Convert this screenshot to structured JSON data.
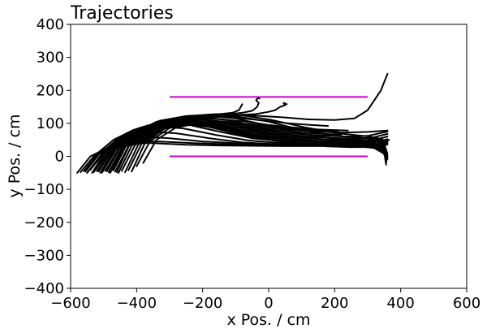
{
  "chart_data": {
    "type": "line",
    "title": "Trajectories",
    "xlabel": "x Pos. / cm",
    "ylabel": "y Pos. / cm",
    "xlim": [
      -600,
      600
    ],
    "ylim": [
      -400,
      400
    ],
    "xticks": [
      -600,
      -400,
      -200,
      0,
      200,
      400,
      600
    ],
    "yticks": [
      -400,
      -300,
      -200,
      -100,
      0,
      100,
      200,
      300,
      400
    ],
    "xtick_labels": [
      "−600",
      "−400",
      "−200",
      "0",
      "200",
      "400",
      "600"
    ],
    "ytick_labels": [
      "−400",
      "−300",
      "−200",
      "−100",
      "0",
      "100",
      "200",
      "300",
      "400"
    ],
    "grid": false,
    "reference_lines": {
      "color": "#cc00cc",
      "lines": [
        {
          "x": [
            -300,
            300
          ],
          "y": [
            180,
            180
          ]
        },
        {
          "x": [
            -300,
            300
          ],
          "y": [
            0,
            0
          ]
        }
      ]
    },
    "trajectory_color": "#000000",
    "series": [
      {
        "x": [
          -580,
          -540,
          -480,
          -420,
          -350,
          -250,
          -150,
          -50,
          50,
          150,
          250,
          320,
          355
        ],
        "y": [
          -50,
          0,
          30,
          40,
          40,
          35,
          33,
          32,
          31,
          31,
          33,
          25,
          5
        ]
      },
      {
        "x": [
          -560,
          -520,
          -460,
          -400,
          -330,
          -230,
          -130,
          -30,
          70,
          170,
          260,
          330,
          360
        ],
        "y": [
          -45,
          5,
          35,
          45,
          45,
          40,
          37,
          35,
          33,
          32,
          35,
          28,
          2
        ]
      },
      {
        "x": [
          -550,
          -500,
          -440,
          -380,
          -300,
          -200,
          -100,
          0,
          100,
          200,
          280,
          340,
          360
        ],
        "y": [
          -50,
          10,
          45,
          60,
          55,
          45,
          40,
          36,
          34,
          33,
          36,
          20,
          -5
        ]
      },
      {
        "x": [
          -540,
          -490,
          -420,
          -360,
          -280,
          -180,
          -80,
          20,
          120,
          220,
          300,
          345,
          358
        ],
        "y": [
          -40,
          20,
          60,
          75,
          70,
          55,
          42,
          37,
          35,
          34,
          37,
          15,
          -10
        ]
      },
      {
        "x": [
          -530,
          -480,
          -410,
          -340,
          -260,
          -160,
          -60,
          40,
          140,
          240,
          310,
          350,
          357
        ],
        "y": [
          -48,
          25,
          70,
          90,
          85,
          65,
          48,
          40,
          37,
          36,
          40,
          10,
          -15
        ]
      },
      {
        "x": [
          -520,
          -470,
          -400,
          -320,
          -240,
          -150,
          -50,
          50,
          150,
          250,
          315,
          350,
          355
        ],
        "y": [
          -45,
          30,
          80,
          100,
          95,
          75,
          55,
          45,
          38,
          37,
          40,
          12,
          -20
        ]
      },
      {
        "x": [
          -510,
          -460,
          -380,
          -300,
          -220,
          -140,
          -40,
          60,
          160,
          260,
          320,
          352,
          356
        ],
        "y": [
          -50,
          35,
          85,
          105,
          105,
          90,
          65,
          50,
          42,
          40,
          42,
          14,
          -25
        ]
      },
      {
        "x": [
          -500,
          -450,
          -370,
          -290,
          -200,
          -120,
          -30,
          70,
          170,
          270,
          330,
          355
        ],
        "y": [
          -40,
          40,
          90,
          110,
          112,
          100,
          75,
          55,
          45,
          42,
          44,
          0
        ]
      },
      {
        "x": [
          -490,
          -440,
          -360,
          -280,
          -190,
          -110,
          -20,
          80,
          180,
          280,
          335,
          358
        ],
        "y": [
          -45,
          45,
          95,
          115,
          118,
          108,
          85,
          62,
          50,
          46,
          45,
          -5
        ]
      },
      {
        "x": [
          -480,
          -430,
          -350,
          -270,
          -180,
          -100,
          -10,
          90,
          190,
          290,
          340,
          360
        ],
        "y": [
          -50,
          50,
          100,
          118,
          122,
          115,
          95,
          70,
          55,
          50,
          48,
          -8
        ]
      },
      {
        "x": [
          -470,
          -420,
          -340,
          -260,
          -170,
          -90,
          0,
          100,
          200,
          300,
          342,
          360
        ],
        "y": [
          -42,
          55,
          105,
          120,
          125,
          120,
          105,
          80,
          62,
          55,
          50,
          0
        ]
      },
      {
        "x": [
          -460,
          -410,
          -330,
          -250,
          -160,
          -80,
          10,
          110,
          210,
          305,
          345,
          360
        ],
        "y": [
          -48,
          60,
          108,
          122,
          128,
          124,
          110,
          88,
          70,
          60,
          52,
          8
        ]
      },
      {
        "x": [
          -570,
          -530,
          -470,
          -410,
          -340,
          -260,
          -200,
          -150,
          -110,
          -90,
          -80
        ],
        "y": [
          -48,
          0,
          50,
          80,
          100,
          110,
          120,
          128,
          132,
          140,
          158
        ]
      },
      {
        "x": [
          -555,
          -515,
          -455,
          -395,
          -325,
          -250,
          -180,
          -120,
          -80,
          -50,
          -35,
          -30,
          -38,
          -32,
          -28
        ],
        "y": [
          -46,
          5,
          55,
          85,
          105,
          115,
          122,
          128,
          132,
          138,
          150,
          162,
          170,
          178,
          175
        ]
      },
      {
        "x": [
          -545,
          -505,
          -445,
          -385,
          -315,
          -240,
          -170,
          -100,
          -40,
          0,
          20,
          35,
          50,
          45,
          55
        ],
        "y": [
          -44,
          8,
          58,
          88,
          108,
          118,
          122,
          125,
          128,
          135,
          140,
          150,
          155,
          162,
          158
        ]
      },
      {
        "x": [
          -535,
          -495,
          -435,
          -375,
          -305,
          -230,
          -160,
          -90,
          -20,
          50,
          120,
          200,
          260,
          300,
          340,
          360
        ],
        "y": [
          -50,
          12,
          60,
          90,
          110,
          120,
          125,
          125,
          122,
          118,
          112,
          110,
          115,
          140,
          200,
          250
        ]
      },
      {
        "x": [
          -525,
          -485,
          -425,
          -365,
          -295,
          -220,
          -150,
          -80,
          -10,
          60,
          130,
          180
        ],
        "y": [
          -42,
          15,
          62,
          92,
          112,
          118,
          120,
          115,
          108,
          100,
          95,
          92
        ]
      },
      {
        "x": [
          -515,
          -475,
          -415,
          -355,
          -285,
          -210,
          -140,
          -70,
          0,
          70,
          140,
          190,
          240
        ],
        "y": [
          -46,
          18,
          64,
          94,
          110,
          115,
          112,
          105,
          95,
          88,
          82,
          80,
          78
        ]
      },
      {
        "x": [
          -505,
          -465,
          -405,
          -345,
          -275,
          -200,
          -130,
          -60,
          10,
          80,
          150,
          210
        ],
        "y": [
          -50,
          20,
          66,
          95,
          108,
          110,
          105,
          98,
          90,
          82,
          78,
          75
        ]
      },
      {
        "x": [
          -495,
          -455,
          -395,
          -335,
          -265,
          -190,
          -120,
          -50,
          20,
          90,
          160,
          230,
          300,
          360
        ],
        "y": [
          -44,
          22,
          68,
          96,
          106,
          105,
          100,
          92,
          84,
          78,
          74,
          72,
          74,
          78
        ]
      },
      {
        "x": [
          -485,
          -445,
          -385,
          -325,
          -255,
          -180,
          -110,
          -40,
          30,
          100,
          170,
          220
        ],
        "y": [
          -48,
          25,
          70,
          96,
          104,
          100,
          94,
          86,
          78,
          72,
          68,
          66
        ]
      },
      {
        "x": [
          -475,
          -435,
          -375,
          -315,
          -245,
          -170,
          -100,
          -30,
          40,
          110,
          180,
          240,
          300,
          360
        ],
        "y": [
          -42,
          28,
          72,
          97,
          102,
          96,
          88,
          80,
          72,
          66,
          62,
          60,
          62,
          75
        ]
      },
      {
        "x": [
          -465,
          -425,
          -365,
          -305,
          -235,
          -160,
          -90,
          -20,
          50,
          120,
          190,
          250,
          310,
          360
        ],
        "y": [
          -46,
          30,
          74,
          98,
          100,
          92,
          82,
          74,
          66,
          60,
          56,
          54,
          56,
          68
        ]
      },
      {
        "x": [
          -455,
          -415,
          -355,
          -295,
          -225,
          -150,
          -80,
          -10,
          60,
          130,
          200,
          260,
          320,
          360
        ],
        "y": [
          -50,
          32,
          76,
          98,
          98,
          88,
          76,
          68,
          60,
          54,
          50,
          48,
          50,
          60
        ]
      },
      {
        "x": [
          -445,
          -405,
          -345,
          -285,
          -215,
          -140,
          -70,
          0,
          70,
          140,
          210,
          270,
          330,
          360
        ],
        "y": [
          -44,
          34,
          78,
          98,
          96,
          84,
          70,
          62,
          54,
          48,
          44,
          42,
          44,
          52
        ]
      },
      {
        "x": [
          -435,
          -395,
          -335,
          -275,
          -205,
          -130,
          -60,
          10,
          80,
          150,
          220,
          280,
          340,
          360
        ],
        "y": [
          -48,
          36,
          80,
          98,
          94,
          80,
          66,
          56,
          48,
          42,
          38,
          36,
          38,
          44
        ]
      },
      {
        "x": [
          -425,
          -385,
          -325,
          -265,
          -195,
          -120,
          -50,
          20,
          90,
          160,
          230,
          290,
          345,
          360
        ],
        "y": [
          -42,
          38,
          82,
          98,
          92,
          76,
          62,
          50,
          42,
          36,
          32,
          30,
          32,
          36
        ]
      },
      {
        "x": [
          -415,
          -375,
          -315,
          -255,
          -185,
          -110,
          -40,
          30,
          100,
          170,
          240,
          300,
          350
        ],
        "y": [
          -46,
          40,
          84,
          98,
          90,
          72,
          58,
          46,
          38,
          32,
          28,
          28,
          30
        ]
      },
      {
        "x": [
          -400,
          -360,
          -300,
          -240,
          -170,
          -100,
          -30,
          40,
          110,
          180,
          250,
          310,
          360
        ],
        "y": [
          -30,
          45,
          86,
          98,
          88,
          70,
          56,
          44,
          36,
          30,
          28,
          30,
          40
        ]
      },
      {
        "x": [
          -380,
          -340,
          -280,
          -220,
          -150,
          -80,
          -10,
          60,
          130,
          200,
          270,
          330,
          365
        ],
        "y": [
          -20,
          50,
          88,
          98,
          86,
          68,
          54,
          42,
          34,
          30,
          30,
          34,
          50
        ]
      }
    ]
  }
}
